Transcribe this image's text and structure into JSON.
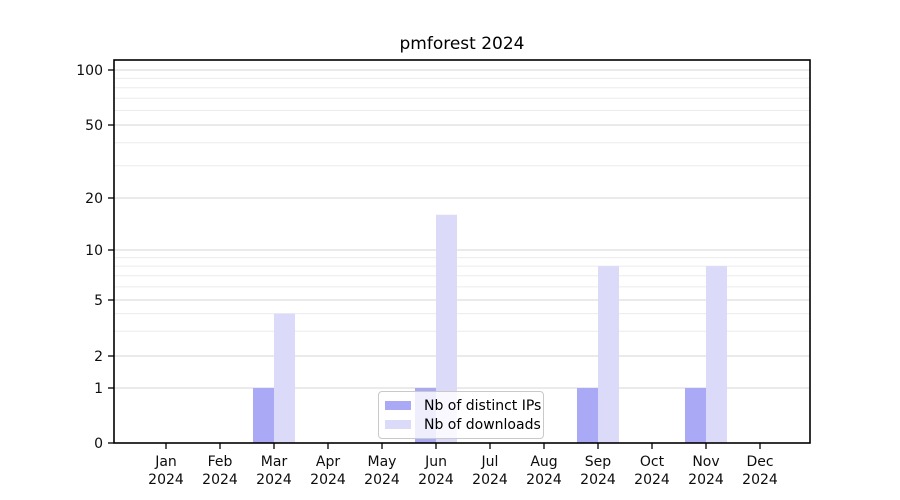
{
  "title": "pmforest 2024",
  "legend": {
    "items": [
      {
        "label": "Nb of distinct IPs",
        "color": "#a9a9f5"
      },
      {
        "label": "Nb of downloads",
        "color": "#dbdbf9"
      }
    ]
  },
  "axes": {
    "x": {
      "months": [
        "Jan",
        "Feb",
        "Mar",
        "Apr",
        "May",
        "Jun",
        "Jul",
        "Aug",
        "Sep",
        "Oct",
        "Nov",
        "Dec"
      ],
      "year": "2024"
    },
    "y": {
      "ticks": [
        0,
        1,
        2,
        5,
        10,
        20,
        50,
        100
      ]
    }
  },
  "chart_data": {
    "type": "bar",
    "title": "pmforest 2024",
    "categories": [
      "Jan 2024",
      "Feb 2024",
      "Mar 2024",
      "Apr 2024",
      "May 2024",
      "Jun 2024",
      "Jul 2024",
      "Aug 2024",
      "Sep 2024",
      "Oct 2024",
      "Nov 2024",
      "Dec 2024"
    ],
    "series": [
      {
        "name": "Nb of distinct IPs",
        "color": "#a9a9f5",
        "values": [
          0,
          0,
          1,
          0,
          0,
          1,
          0,
          0,
          1,
          0,
          1,
          0
        ]
      },
      {
        "name": "Nb of downloads",
        "color": "#dbdbf9",
        "values": [
          0,
          0,
          4,
          0,
          0,
          16,
          0,
          0,
          8,
          0,
          8,
          0
        ]
      }
    ],
    "xlabel": "",
    "ylabel": "",
    "ylim": [
      0,
      100
    ],
    "yticks": [
      0,
      1,
      2,
      5,
      10,
      20,
      50,
      100
    ],
    "yscale": "log above 1, linear segment 0-1",
    "grid": "horizontal major + faint minor",
    "legend_position": "lower center inside plot"
  }
}
